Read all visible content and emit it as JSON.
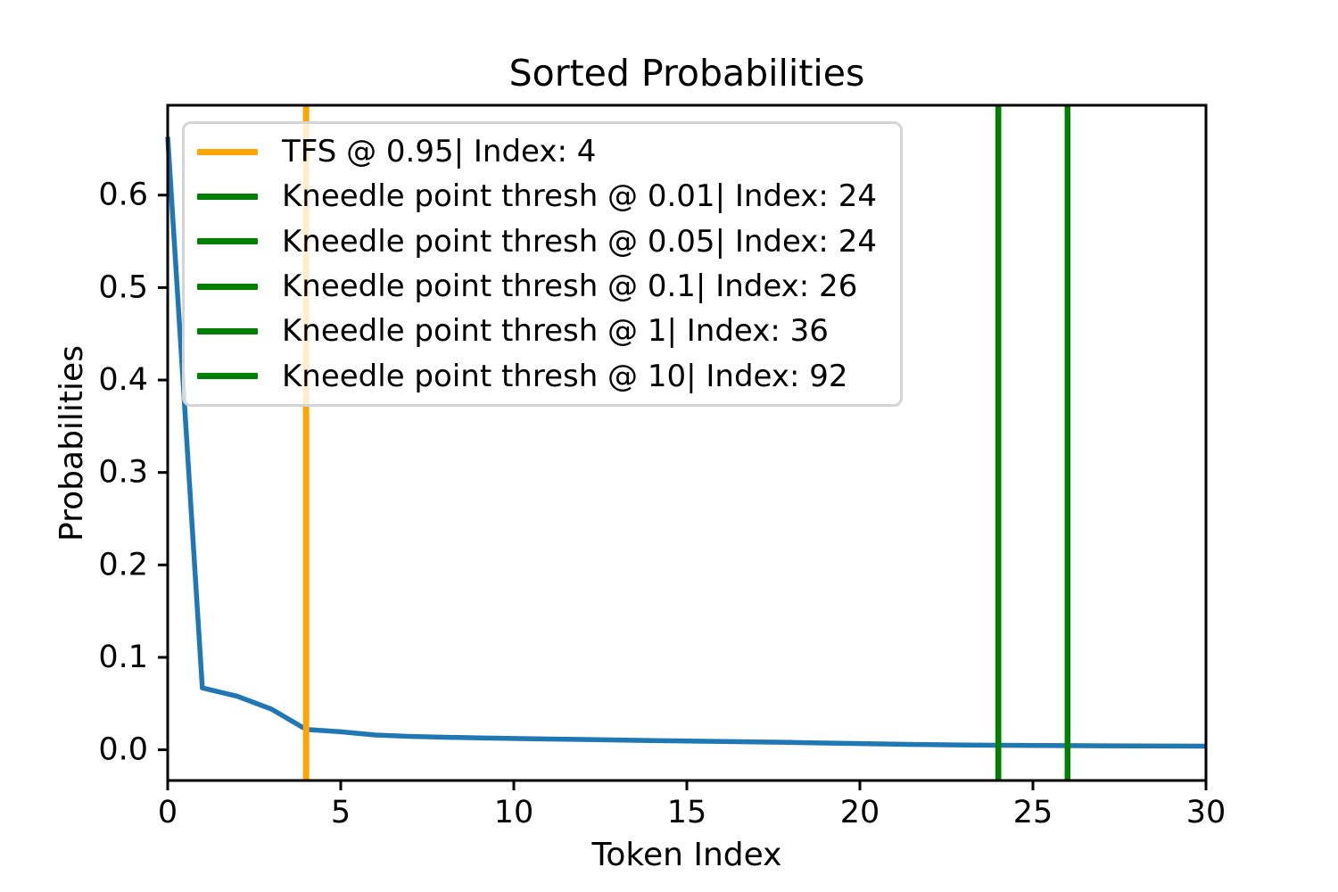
{
  "chart_data": {
    "type": "line",
    "title": "Sorted Probabilities",
    "xlabel": "Token Index",
    "ylabel": "Probabilities",
    "xlim": [
      0,
      30
    ],
    "ylim": [
      -0.0332,
      0.6972
    ],
    "grid": false,
    "legend_position": "upper left",
    "xticks": {
      "values": [
        0,
        5,
        10,
        15,
        20,
        25,
        30
      ],
      "labels": [
        "0",
        "5",
        "10",
        "15",
        "20",
        "25",
        "30"
      ]
    },
    "yticks": {
      "values": [
        0.0,
        0.1,
        0.2,
        0.3,
        0.4,
        0.5,
        0.6
      ],
      "labels": [
        "0.0",
        "0.1",
        "0.2",
        "0.3",
        "0.4",
        "0.5",
        "0.6"
      ]
    },
    "series": [
      {
        "name": "sorted-probabilities-curve",
        "color": "#1f77b4",
        "x": [
          0,
          1,
          2,
          3,
          4,
          5,
          6,
          7,
          8,
          9,
          10,
          11,
          12,
          13,
          14,
          15,
          16,
          17,
          18,
          19,
          20,
          21,
          22,
          23,
          24,
          25,
          26,
          27,
          28,
          29,
          30
        ],
        "values": [
          0.663,
          0.067,
          0.058,
          0.044,
          0.022,
          0.0195,
          0.016,
          0.0145,
          0.0136,
          0.0129,
          0.0123,
          0.0117,
          0.0112,
          0.0106,
          0.01,
          0.0095,
          0.009,
          0.0085,
          0.008,
          0.0073,
          0.0067,
          0.0061,
          0.0056,
          0.0052,
          0.0049,
          0.0047,
          0.0045,
          0.0043,
          0.0042,
          0.0041,
          0.004
        ]
      }
    ],
    "vlines": [
      {
        "x": 4,
        "color": "#ffa500",
        "label": "TFS @ 0.95| Index: 4"
      },
      {
        "x": 24,
        "color": "#008000",
        "label": "Kneedle point thresh @ 0.01| Index: 24"
      },
      {
        "x": 24,
        "color": "#008000",
        "label": "Kneedle point thresh @ 0.05| Index: 24"
      },
      {
        "x": 26,
        "color": "#008000",
        "label": "Kneedle point thresh @ 0.1| Index: 26"
      },
      {
        "x": 36,
        "color": "#008000",
        "label": "Kneedle point thresh @ 1| Index: 36"
      },
      {
        "x": 92,
        "color": "#008000",
        "label": "Kneedle point thresh @ 10| Index: 92"
      }
    ]
  }
}
